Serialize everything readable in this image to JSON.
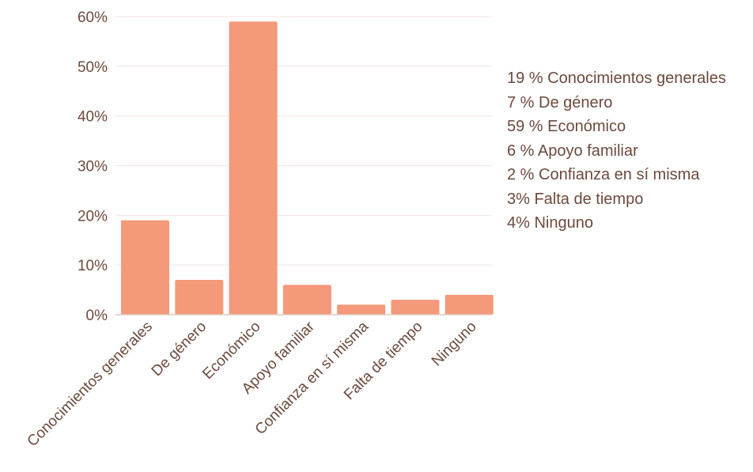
{
  "chart_data": {
    "type": "bar",
    "categories": [
      "Conocimientos generales",
      "De género",
      "Económico",
      "Apoyo familiar",
      "Confianza en sí misma",
      "Falta de tiempo",
      "Ninguno"
    ],
    "values": [
      19,
      7,
      59,
      6,
      2,
      3,
      4
    ],
    "ylim": [
      0,
      60
    ],
    "yticks": [
      0,
      10,
      20,
      30,
      40,
      50,
      60
    ],
    "ytick_labels": [
      "0%",
      "10%",
      "20%",
      "30%",
      "40%",
      "50%",
      "60%"
    ],
    "grid": true,
    "legend_position": "right",
    "bar_color": "#f4997a",
    "grid_color": "#f6e6e6",
    "axis_color": "#e2c8bf",
    "text_color": "#6b4a3c",
    "annotations": [
      "19 % Conocimientos generales",
      "7 % De género",
      "59 % Económico",
      "6 % Apoyo familiar",
      "2 % Confianza en sí misma",
      "3% Falta de tiempo",
      "4% Ninguno"
    ]
  }
}
